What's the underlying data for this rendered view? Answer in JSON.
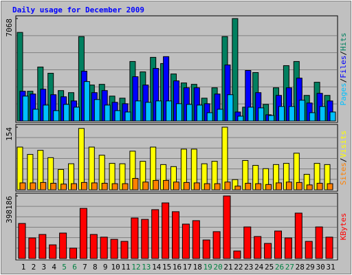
{
  "chart_data": [
    {
      "type": "bar",
      "title": "Daily usage for December 2009",
      "ylim": [
        0,
        7068
      ],
      "yticks": [
        7068
      ],
      "grid": true,
      "legend_separator": "/",
      "series": [
        {
          "name": "Hits",
          "color": "#008060",
          "values": [
            6113,
            2054,
            3725,
            3295,
            2101,
            1958,
            5826,
            2483,
            2531,
            1719,
            1576,
            4107,
            3390,
            4393,
            3964,
            3247,
            2627,
            2531,
            1576,
            2292,
            5826,
            7068,
            955,
            3343,
            1146,
            2292,
            3821,
            4107,
            1767,
            2674,
            1767
          ]
        },
        {
          "name": "Files",
          "color": "#0000ff",
          "values": [
            2054,
            1862,
            2197,
            1815,
            1672,
            1385,
            3439,
            1958,
            2101,
            1290,
            1194,
            3057,
            2483,
            3630,
            4442,
            2770,
            2292,
            2292,
            1194,
            1862,
            3869,
            621,
            3487,
            1958,
            430,
            1767,
            2292,
            2961,
            1242,
            1910,
            1385
          ]
        },
        {
          "name": "Pages",
          "color": "#00c0ff",
          "values": [
            1719,
            812,
            1099,
            716,
            1146,
            955,
            2722,
            1481,
            1099,
            716,
            621,
            1385,
            1290,
            1385,
            1385,
            1194,
            1146,
            1099,
            573,
            812,
            1815,
            334,
            955,
            907,
            382,
            1003,
            1003,
            1433,
            573,
            1003,
            621
          ]
        }
      ]
    },
    {
      "type": "bar",
      "ylim": [
        0,
        154
      ],
      "yticks": [
        154
      ],
      "grid": true,
      "legend_separator": "/",
      "series": [
        {
          "name": "Visits",
          "color": "#ffff00",
          "values": [
            105,
            87,
            97,
            79,
            50,
            64,
            151,
            105,
            85,
            65,
            64,
            95,
            70,
            105,
            62,
            57,
            100,
            100,
            64,
            70,
            154,
            25,
            72,
            60,
            52,
            62,
            65,
            90,
            38,
            65,
            62
          ]
        },
        {
          "name": "Sites",
          "color": "#ff8000",
          "values": [
            17,
            17,
            18,
            16,
            14,
            15,
            18,
            17,
            16,
            15,
            15,
            28,
            19,
            23,
            23,
            19,
            18,
            17,
            15,
            15,
            19,
            9,
            16,
            15,
            13,
            17,
            19,
            18,
            12,
            16,
            15
          ]
        }
      ]
    },
    {
      "type": "bar",
      "ylim": [
        0,
        398186
      ],
      "yticks": [
        398186
      ],
      "grid": true,
      "categories": [
        "1",
        "2",
        "3",
        "4",
        "5",
        "6",
        "7",
        "8",
        "9",
        "10",
        "11",
        "12",
        "13",
        "14",
        "15",
        "16",
        "17",
        "18",
        "19",
        "20",
        "21",
        "22",
        "23",
        "24",
        "25",
        "26",
        "27",
        "28",
        "29",
        "30",
        "31"
      ],
      "category_colors": [
        "#000000",
        "#000000",
        "#000000",
        "#000000",
        "#008040",
        "#008040",
        "#000000",
        "#000000",
        "#000000",
        "#000000",
        "#000000",
        "#008040",
        "#008040",
        "#000000",
        "#000000",
        "#000000",
        "#000000",
        "#000000",
        "#008040",
        "#008040",
        "#000000",
        "#000000",
        "#000000",
        "#000000",
        "#000000",
        "#008040",
        "#008040",
        "#000000",
        "#000000",
        "#000000",
        "#000000"
      ],
      "series": [
        {
          "name": "KBytes",
          "color": "#ff0000",
          "values": [
            223000,
            131000,
            153000,
            87000,
            162000,
            66000,
            319000,
            153000,
            136000,
            122000,
            109000,
            258000,
            249000,
            311000,
            354000,
            298000,
            219000,
            241000,
            118000,
            171000,
            398186,
            48000,
            201000,
            140000,
            96000,
            175000,
            131000,
            289000,
            109000,
            201000,
            136000
          ]
        }
      ]
    }
  ]
}
